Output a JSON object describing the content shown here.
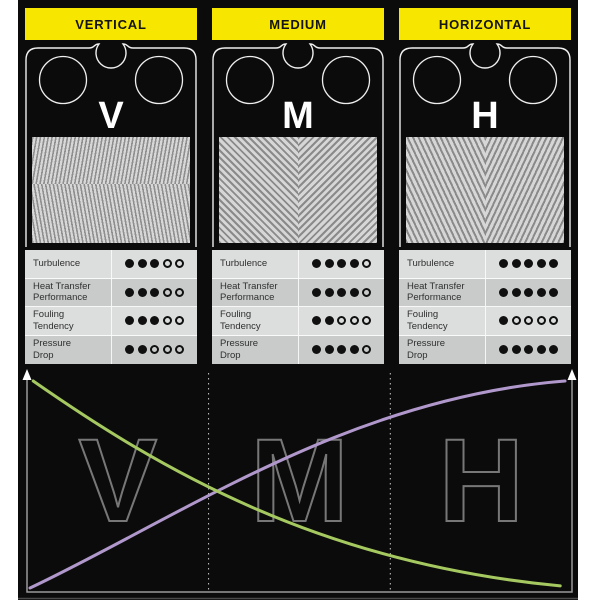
{
  "colors": {
    "header_bg": "#f7e600",
    "header_text": "#141414",
    "panel_bg": "#0b0b0b",
    "purple_curve": "#b198cc",
    "green_curve": "#a5c960",
    "row_light": "#dcdddd",
    "row_dark": "#c9cbcb",
    "dot": "#101010",
    "plate_outline": "#efefef"
  },
  "columns": [
    {
      "header": "VERTICAL",
      "letter": "V",
      "chevron_style": "steep-vertical",
      "ratings": [
        {
          "label": "Turbulence",
          "label_lines": [
            "Turbulence"
          ],
          "value": 3,
          "max": 5
        },
        {
          "label": "Heat Transfer Performance",
          "label_lines": [
            "Heat Transfer",
            "Performance"
          ],
          "value": 3,
          "max": 5
        },
        {
          "label": "Fouling Tendency",
          "label_lines": [
            "Fouling",
            "Tendency"
          ],
          "value": 3,
          "max": 5
        },
        {
          "label": "Pressure Drop",
          "label_lines": [
            "Pressure",
            "Drop"
          ],
          "value": 2,
          "max": 5
        }
      ]
    },
    {
      "header": "MEDIUM",
      "letter": "M",
      "chevron_style": "medium-45deg",
      "ratings": [
        {
          "label": "Turbulence",
          "label_lines": [
            "Turbulence"
          ],
          "value": 4,
          "max": 5
        },
        {
          "label": "Heat Transfer Performance",
          "label_lines": [
            "Heat Transfer",
            "Performance"
          ],
          "value": 4,
          "max": 5
        },
        {
          "label": "Fouling Tendency",
          "label_lines": [
            "Fouling",
            "Tendency"
          ],
          "value": 2,
          "max": 5
        },
        {
          "label": "Pressure Drop",
          "label_lines": [
            "Pressure",
            "Drop"
          ],
          "value": 4,
          "max": 5
        }
      ]
    },
    {
      "header": "HORIZONTAL",
      "letter": "H",
      "chevron_style": "shallow-horizontal",
      "ratings": [
        {
          "label": "Turbulence",
          "label_lines": [
            "Turbulence"
          ],
          "value": 5,
          "max": 5
        },
        {
          "label": "Heat Transfer Performance",
          "label_lines": [
            "Heat Transfer",
            "Performance"
          ],
          "value": 5,
          "max": 5
        },
        {
          "label": "Fouling Tendency",
          "label_lines": [
            "Fouling",
            "Tendency"
          ],
          "value": 1,
          "max": 5
        },
        {
          "label": "Pressure Drop",
          "label_lines": [
            "Pressure",
            "Drop"
          ],
          "value": 5,
          "max": 5
        }
      ]
    }
  ],
  "chart_data": {
    "type": "line",
    "title": "",
    "xlabel": "",
    "ylabel": "",
    "tick_labels": false,
    "x_zones": [
      "V",
      "M",
      "H"
    ],
    "axes": {
      "y_left_arrow": true,
      "y_right_arrow": true,
      "x_axis": true,
      "zone_dividers": 2
    },
    "series": [
      {
        "name": "rising-curve",
        "color": "#b198cc",
        "trend": "rising",
        "bezier_norm": [
          [
            0.0,
            0.0
          ],
          [
            0.277,
            0.338
          ],
          [
            0.594,
            0.918
          ],
          [
            1.0,
            1.0
          ]
        ]
      },
      {
        "name": "falling-curve",
        "color": "#a5c960",
        "trend": "falling",
        "bezier_norm": [
          [
            0.006,
            1.0
          ],
          [
            0.239,
            0.58
          ],
          [
            0.538,
            0.121
          ],
          [
            0.991,
            0.01
          ]
        ]
      }
    ]
  }
}
